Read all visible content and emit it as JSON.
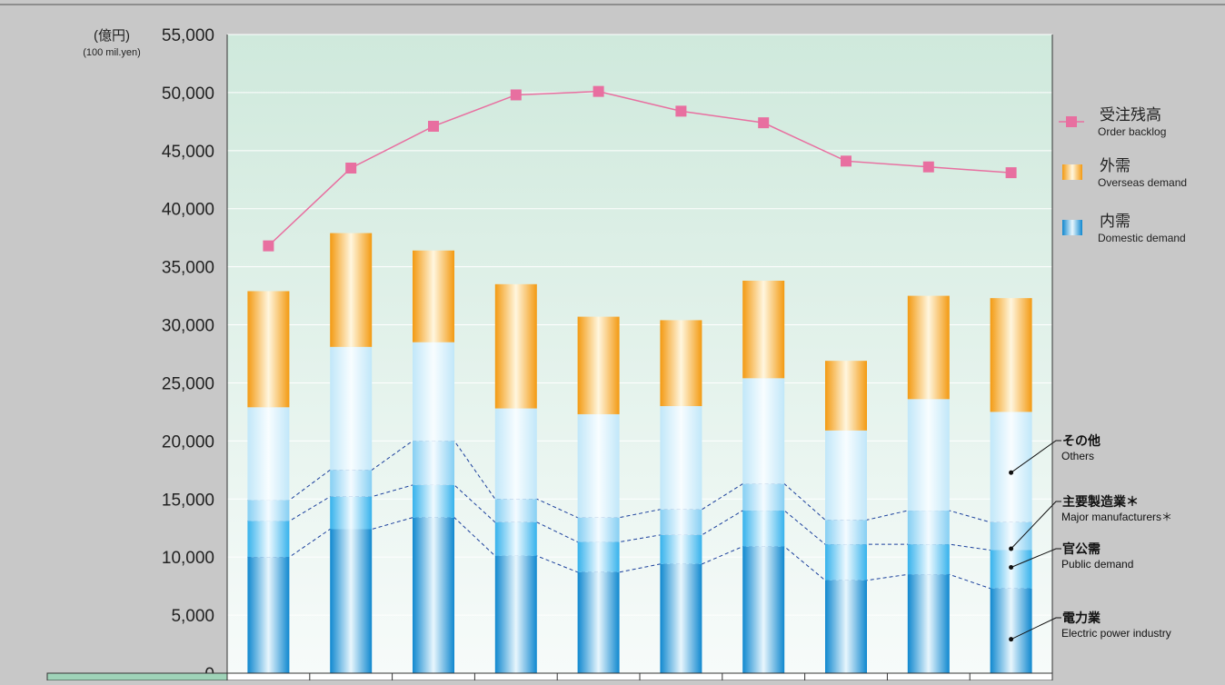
{
  "unit_label": "(億円)",
  "unit_sub": "(100 mil.yen)",
  "chart_data": {
    "type": "bar",
    "stacked": true,
    "categories": [
      "",
      "",
      "",
      "",
      "",
      "",
      "",
      "",
      "",
      ""
    ],
    "ylim": [
      0,
      55000
    ],
    "yticks": [
      0,
      5000,
      10000,
      15000,
      20000,
      25000,
      30000,
      35000,
      40000,
      45000,
      50000,
      55000
    ],
    "ytick_labels": [
      "0",
      "5,000",
      "10,000",
      "15,000",
      "20,000",
      "25,000",
      "30,000",
      "35,000",
      "40,000",
      "45,000",
      "50,000",
      "55,000"
    ],
    "grid": true,
    "legend_position": "right",
    "series": [
      {
        "name": "電力業",
        "name_en": "Electric power industry",
        "stack": "domestic",
        "color": "#1f8fd6",
        "values": [
          10000,
          12400,
          13400,
          10100,
          8700,
          9400,
          10900,
          8000,
          8500,
          7300
        ]
      },
      {
        "name": "官公需",
        "name_en": "Public demand",
        "stack": "domestic",
        "color": "#3fb4ee",
        "values": [
          3100,
          2800,
          2800,
          2900,
          2600,
          2500,
          3100,
          3100,
          2600,
          3300
        ]
      },
      {
        "name": "主要製造業＊",
        "name_en": "Major manufacturers＊",
        "stack": "domestic",
        "color": "#8ed3f6",
        "values": [
          1800,
          2300,
          3800,
          2000,
          2100,
          2200,
          2300,
          2100,
          2900,
          2400
        ]
      },
      {
        "name": "その他",
        "name_en": "Others",
        "stack": "domestic",
        "color": "#c9ebfb",
        "values": [
          8000,
          10600,
          8500,
          7800,
          8900,
          8900,
          9100,
          7700,
          9600,
          9500
        ]
      },
      {
        "name": "外需",
        "name_en": "Overseas demand",
        "stack": "overseas",
        "color": "#f5a623",
        "values": [
          10000,
          9800,
          7900,
          10700,
          8400,
          7400,
          8400,
          6000,
          8900,
          9800
        ]
      },
      {
        "name": "受注残高",
        "name_en": "Order backlog",
        "type": "line",
        "color": "#e86fa0",
        "values": [
          36800,
          43500,
          47100,
          49800,
          50100,
          48400,
          47400,
          44100,
          43600,
          43100
        ]
      }
    ],
    "legend": [
      {
        "label": "受注残高",
        "label_en": "Order backlog",
        "kind": "line"
      },
      {
        "label": "外需",
        "label_en": "Overseas demand",
        "kind": "bar-orange"
      },
      {
        "label": "内需",
        "label_en": "Domestic demand",
        "kind": "bar-blue"
      }
    ],
    "annotations": [
      {
        "label": "その他",
        "label_en": "Others"
      },
      {
        "label": "主要製造業＊",
        "label_en": "Major manufacturers＊"
      },
      {
        "label": "官公需",
        "label_en": "Public demand"
      },
      {
        "label": "電力業",
        "label_en": "Electric power industry"
      }
    ]
  }
}
